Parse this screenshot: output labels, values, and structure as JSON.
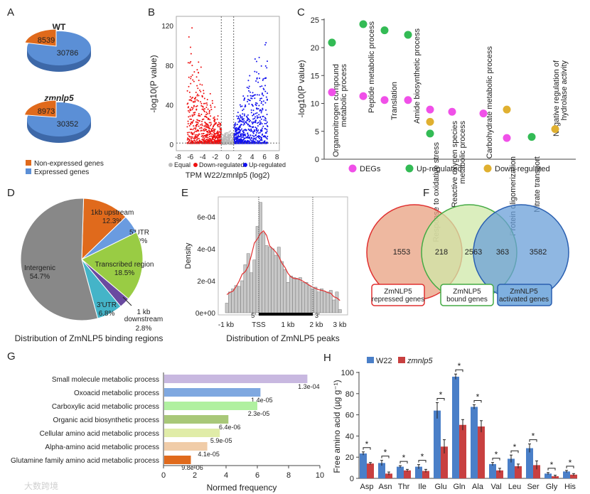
{
  "chart_data": [
    {
      "panel": "A",
      "type": "pie",
      "label": "A",
      "charts": [
        {
          "title": "WT",
          "values": [
            8539,
            30786
          ]
        },
        {
          "title": "zmnlp5",
          "values": [
            8973,
            30352
          ]
        }
      ],
      "legend": [
        "Non-expressed genes",
        "Expressed genes"
      ],
      "colors": [
        "#e06a1c",
        "#5b8fd6"
      ]
    },
    {
      "panel": "B",
      "type": "scatter",
      "label": "B",
      "title": "",
      "xlabel": "TPM W22/zmnlp5 (log2)",
      "ylabel": "-log10(P value)",
      "xlim": [
        -8,
        8
      ],
      "ylim": [
        0,
        125
      ],
      "xticks": [
        "-8",
        "-6",
        "-4",
        "-2",
        "0",
        "2",
        "4",
        "6",
        "8"
      ],
      "yticks": [
        "0",
        "40",
        "80",
        "120"
      ],
      "legend": [
        "Equal",
        "Down-regulated",
        "Up-regulated"
      ],
      "colors": [
        "#bbbbbb",
        "#ee1111",
        "#1111ee"
      ],
      "thresholds": {
        "x": [
          -1,
          1
        ],
        "y": 1.3
      }
    },
    {
      "panel": "C",
      "type": "scatter",
      "label": "C",
      "ylabel": "-log10(P value)",
      "ylim": [
        0,
        25
      ],
      "yticks": [
        "0",
        "5",
        "10",
        "15",
        "20",
        "25"
      ],
      "categories": [
        "Organonitrogen compound metabolic process",
        "Peptide metabolic process",
        "Translation",
        "Amide biosynthetic process",
        "Response to oxidative stress",
        "Reactive oxygen species metabolic process",
        "Carbohydrate metabolic process",
        "Protein oligomerization",
        "Nitrate transport",
        "Negative regulation of hydrolase activity"
      ],
      "series": [
        {
          "name": "DEGs",
          "color": "#f050e8",
          "values": [
            12,
            11.3,
            10.6,
            10.6,
            8.9,
            8.5,
            8.2,
            3.8,
            null,
            null
          ]
        },
        {
          "name": "Up-regulated",
          "color": "#33bb55",
          "values": [
            20.9,
            24.2,
            23.1,
            22.3,
            4.6,
            null,
            null,
            null,
            4.0,
            null
          ]
        },
        {
          "name": "Down-regulated",
          "color": "#e0b030",
          "values": [
            null,
            null,
            null,
            null,
            6.7,
            null,
            null,
            8.9,
            null,
            5.4
          ]
        }
      ]
    },
    {
      "panel": "D",
      "type": "pie",
      "label": "D",
      "title": "Distribution of ZmNLP5 binding regions",
      "slices": [
        {
          "name": "1kb upstream",
          "value": 12.3,
          "text": "12.3%",
          "color": "#e06a1c"
        },
        {
          "name": "5'UTR",
          "value": 4.9,
          "text": "4.9%",
          "color": "#6a9be0"
        },
        {
          "name": "Transcribed region",
          "value": 18.5,
          "text": "18.5%",
          "color": "#99cc44"
        },
        {
          "name": "1 kb downstream",
          "value": 2.8,
          "text": "2.8%",
          "color": "#6a4aa0"
        },
        {
          "name": "3'UTR",
          "value": 6.8,
          "text": "6.8%",
          "color": "#44b4c8"
        },
        {
          "name": "Intergenic",
          "value": 54.7,
          "text": "54.7%",
          "color": "#888888"
        }
      ]
    },
    {
      "panel": "E",
      "type": "bar",
      "label": "E",
      "title": "Distribution of ZmNLP5 peaks",
      "xlabel": "Distribution of ZmNLP5 peaks",
      "ylabel": "Density",
      "yticks": [
        "0e+00",
        "2e-04",
        "4e-04",
        "6e-04"
      ],
      "xticks": [
        "-1 kb",
        "TSS",
        "1 kb",
        "2 kb",
        "3 kb"
      ],
      "gene_labels": [
        "5'",
        "3'"
      ],
      "xrange_kb": [
        -1,
        3.6
      ],
      "values_e4": [
        0.6,
        1.3,
        1.5,
        1.7,
        1.65,
        2.0,
        3.0,
        3.7,
        2.5,
        3.3,
        5.4,
        6.9,
        5.0,
        4.2,
        4.1,
        4.0,
        3.6,
        4.1,
        3.2,
        2.7,
        1.9,
        2.3,
        2.2,
        2.1,
        2.2,
        1.9,
        1.9,
        1.7,
        1.5,
        1.6,
        1.3,
        1.5,
        1.3,
        1.3,
        1.4,
        0.8,
        1.3,
        0.2
      ]
    },
    {
      "panel": "F",
      "type": "venn",
      "label": "F",
      "sets": [
        {
          "name": "ZmNLP5 repressed genes",
          "color": "#e8a080",
          "edge": "#e03030"
        },
        {
          "name": "ZmNLP5 bound genes",
          "color": "#cfe8a8",
          "edge": "#44aa44"
        },
        {
          "name": "ZmNLP5 activated genes",
          "color": "#6a9fd8",
          "edge": "#2a5fb0"
        }
      ],
      "counts": [
        "1553",
        "218",
        "2563",
        "363",
        "3582"
      ]
    },
    {
      "panel": "G",
      "type": "bar",
      "label": "G",
      "xlabel": "Normed frequency",
      "xlim": [
        0,
        10
      ],
      "xticks": [
        "0",
        "2",
        "4",
        "6",
        "8",
        "10"
      ],
      "categories": [
        "Small molecule metabolic process",
        "Oxoacid metabolic process",
        "Carboxylic acid metabolic process",
        "Organic acid biosynthetic process",
        "Cellular amino acid metabolic process",
        "Alpha-amino acid metabolic process",
        "Glutamine family amino acid metabolic process"
      ],
      "values": [
        9.2,
        6.2,
        6.0,
        4.15,
        3.6,
        2.8,
        1.75
      ],
      "pvalues": [
        "1.3e-04",
        "1.4e-05",
        "2.3e-05",
        "6.4e-06",
        "5.9e-05",
        "4.1e-05",
        "9.8e-06"
      ],
      "colors": [
        "#c8b8e0",
        "#7fa8e0",
        "#b0f0a0",
        "#a8c878",
        "#e0eca8",
        "#f0cca8",
        "#e06a1c"
      ]
    },
    {
      "panel": "H",
      "type": "bar",
      "label": "H",
      "ylabel": "Free amino acid (µg g⁻¹)",
      "ylim": [
        0,
        100
      ],
      "yticks": [
        "0",
        "20",
        "40",
        "60",
        "80",
        "100"
      ],
      "categories": [
        "Asp",
        "Asn",
        "Thr",
        "Ile",
        "Glu",
        "Gln",
        "Ala",
        "Val",
        "Leu",
        "Ser",
        "Gly",
        "His"
      ],
      "series": [
        {
          "name": "W22",
          "color": "#4a7fc8",
          "values": [
            23.5,
            14.5,
            11,
            11,
            64,
            96,
            67.5,
            13.5,
            18.5,
            28.5,
            4.5,
            6.5
          ],
          "err": [
            1.5,
            2.5,
            1,
            2,
            7.5,
            2.5,
            2,
            1.5,
            3.5,
            4,
            1,
            1
          ]
        },
        {
          "name": "zmnlp5",
          "color": "#c84040",
          "values": [
            14,
            4.5,
            7.5,
            7,
            30,
            50.5,
            49,
            7.5,
            11.5,
            12.5,
            2,
            3.5
          ],
          "err": [
            1,
            1.5,
            1,
            1.5,
            6.5,
            5,
            5.5,
            2,
            2,
            4,
            1,
            1
          ]
        }
      ],
      "sig_mark": "*"
    }
  ],
  "watermark": "大数跨境"
}
